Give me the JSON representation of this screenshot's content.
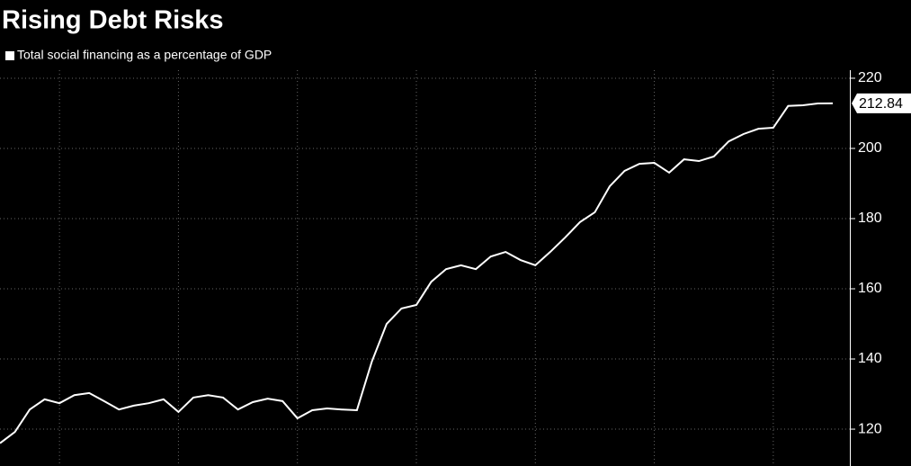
{
  "chart_data": {
    "type": "line",
    "title": "Rising Debt Risks",
    "categories": [
      null,
      null,
      null,
      null,
      null,
      null,
      null,
      null,
      null,
      null,
      null,
      null,
      null,
      null,
      null,
      null,
      null,
      null,
      null,
      null,
      null,
      null,
      null,
      null,
      null,
      null,
      null,
      null,
      null,
      null,
      null,
      null,
      null,
      null,
      null,
      null,
      null,
      null,
      null,
      null,
      null,
      null,
      null,
      null,
      null,
      null,
      null,
      null,
      null,
      null,
      null,
      null,
      null,
      null,
      null,
      null,
      null
    ],
    "series": [
      {
        "name": "Total social financing as a percentage of GDP",
        "color": "#ffffff",
        "values": [
          116,
          119.2,
          125.6,
          128.5,
          127.4,
          129.7,
          130.3,
          128,
          125.6,
          126.7,
          127.4,
          128.5,
          124.9,
          129,
          129.7,
          129,
          125.6,
          127.7,
          128.7,
          128,
          123.1,
          125.4,
          125.9,
          125.6,
          125.4,
          139.2,
          150,
          154.4,
          155.4,
          162,
          165.6,
          166.7,
          165.6,
          169.2,
          170.5,
          168.2,
          166.7,
          170.5,
          174.6,
          179,
          181.8,
          189.2,
          193.6,
          195.6,
          195.9,
          193.1,
          196.9,
          196.4,
          197.7,
          202,
          204.1,
          205.6,
          205.9,
          212.1,
          212.3,
          212.8,
          212.84
        ]
      }
    ],
    "ylim": [
      109.5,
      222.3
    ],
    "yticks": [
      120,
      140,
      160,
      180,
      200,
      220
    ],
    "grid": true
  }
}
